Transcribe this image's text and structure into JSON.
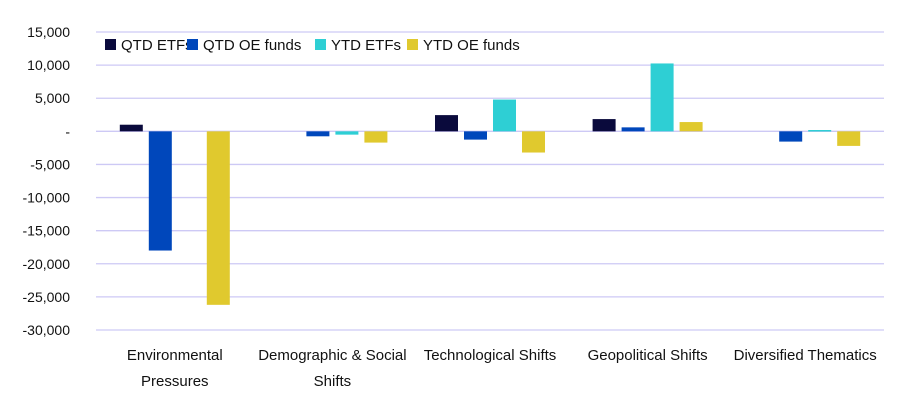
{
  "chart_data": {
    "type": "bar",
    "categories": [
      "Environmental Pressures",
      "Demographic & Social Shifts",
      "Technological Shifts",
      "Geopolitical Shifts",
      "Diversified Thematics"
    ],
    "category_lines": [
      [
        "Environmental",
        "Pressures"
      ],
      [
        "Demographic & Social",
        "Shifts"
      ],
      [
        "Technological Shifts"
      ],
      [
        "Geopolitical Shifts"
      ],
      [
        "Diversified Thematics"
      ]
    ],
    "series": [
      {
        "name": "QTD ETFs",
        "color": "#0a0a3c",
        "values": [
          1000,
          0,
          2450,
          1850,
          0
        ]
      },
      {
        "name": "QTD OE funds",
        "color": "#0047bb",
        "values": [
          -18000,
          -750,
          -1250,
          600,
          -1550
        ]
      },
      {
        "name": "YTD ETFs",
        "color": "#2ecfd4",
        "values": [
          0,
          -500,
          4800,
          10250,
          200
        ]
      },
      {
        "name": "YTD OE funds",
        "color": "#e0c92e",
        "values": [
          -26200,
          -1700,
          -3200,
          1400,
          -2200
        ]
      }
    ],
    "ylim": [
      -30000,
      15000
    ],
    "yticks": [
      15000,
      10000,
      5000,
      0,
      -5000,
      -10000,
      -15000,
      -20000,
      -25000,
      -30000
    ],
    "ytick_labels": [
      "15,000",
      "10,000",
      "5,000",
      "-",
      "-5,000",
      "-10,000",
      "-15,000",
      "-20,000",
      "-25,000",
      "-30,000"
    ],
    "grid": true,
    "grid_color": "#cdc9f5",
    "legend_position": "top-left"
  }
}
